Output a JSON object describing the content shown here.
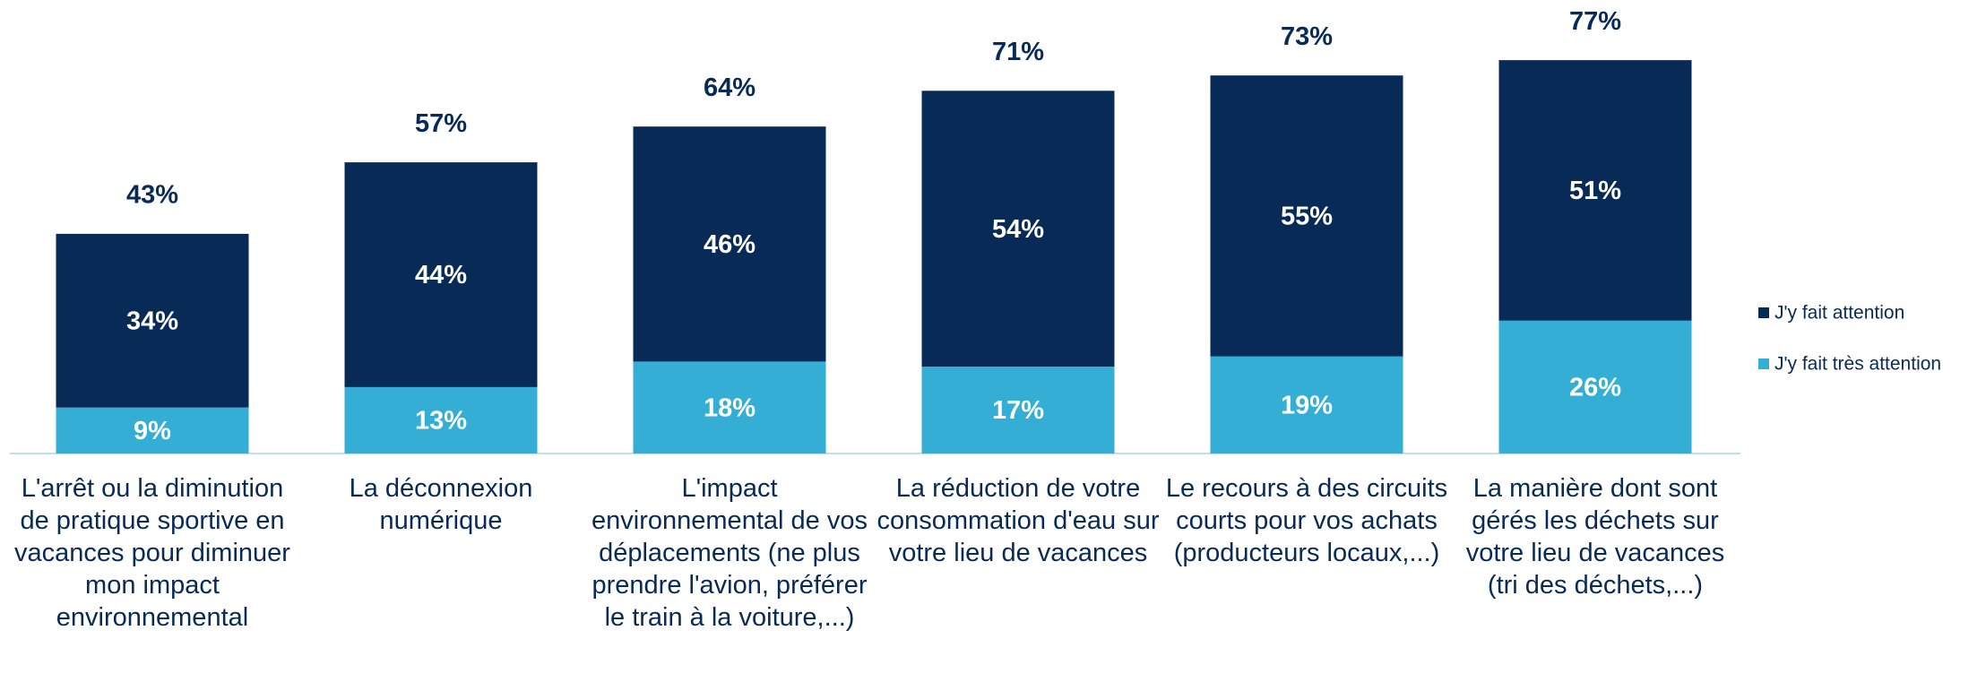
{
  "chart_data": {
    "type": "stacked_bar",
    "categories": [
      "L'arrêt ou la diminution de pratique sportive en vacances pour diminuer mon impact environnemental",
      "La déconnexion numérique",
      "L'impact environnemental de vos déplacements (ne plus prendre l'avion, préférer le train à la voiture,...)",
      "La réduction de votre consommation d'eau sur votre lieu de vacances",
      "Le recours à des circuits courts pour vos achats (producteurs locaux,...)",
      "La manière dont sont gérés les déchets sur votre lieu de vacances (tri des déchets,...)"
    ],
    "series": [
      {
        "name": "J'y fait très attention",
        "color": "#35aed6",
        "values": [
          9,
          13,
          18,
          17,
          19,
          26
        ],
        "value_labels": [
          "9%",
          "13%",
          "18%",
          "17%",
          "19%",
          "26%"
        ]
      },
      {
        "name": "J'y fait attention",
        "color": "#082a57",
        "values": [
          34,
          44,
          46,
          54,
          55,
          51
        ],
        "value_labels": [
          "34%",
          "44%",
          "46%",
          "54%",
          "55%",
          "51%"
        ]
      }
    ],
    "total_labels": [
      "43%",
      "57%",
      "64%",
      "71%",
      "73%",
      "77%"
    ],
    "legend": "right"
  }
}
